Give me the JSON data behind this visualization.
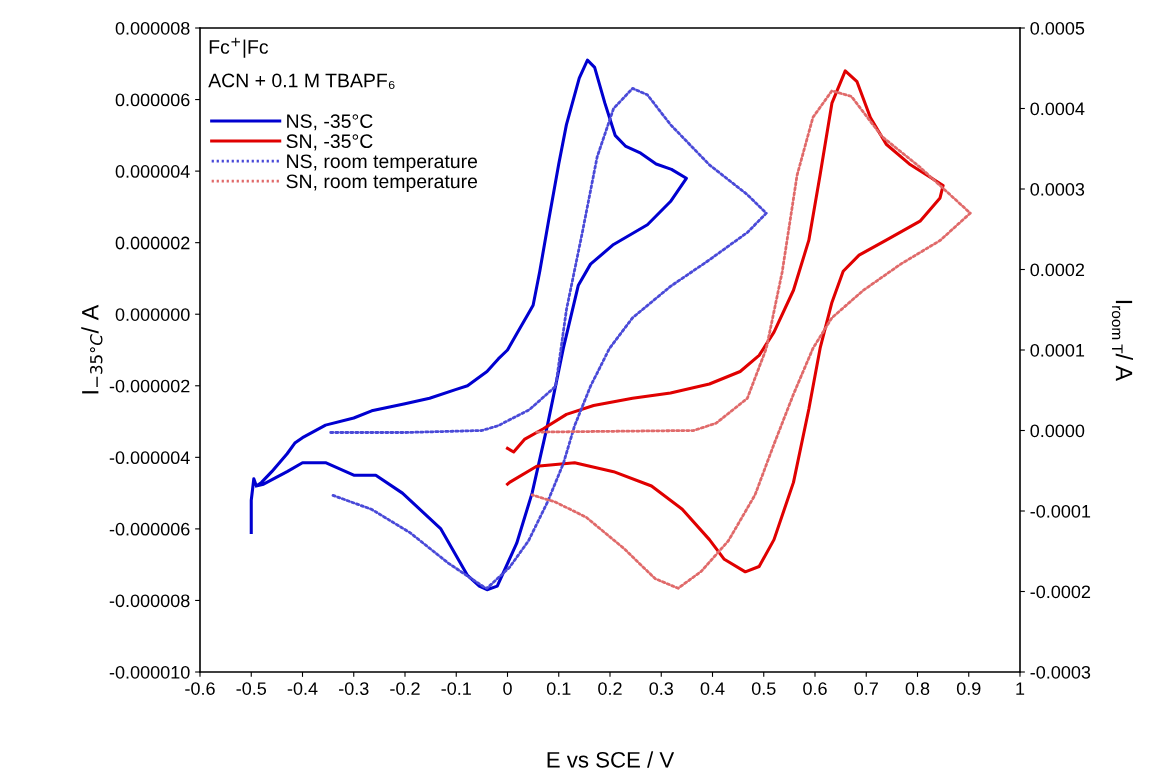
{
  "chart_data": {
    "type": "line",
    "xlabel": "E vs SCE / V",
    "ylabel": "I$_{−35°C}$/ A",
    "y2label": "I$_{room T}$/ A",
    "annotations": [
      "Fc$^{+}$|Fc",
      "ACN + 0.1 M TBAPF₆"
    ],
    "xlim": [
      -0.6,
      1
    ],
    "xticks": [
      -0.6,
      -0.5,
      -0.4,
      -0.3,
      -0.2,
      -0.1,
      0,
      0.1,
      0.2,
      0.3,
      0.4,
      0.5,
      0.6,
      0.7,
      0.8,
      0.9,
      1
    ],
    "ylim": [
      -1e-05,
      8e-06
    ],
    "yticks": [
      {
        "value": 8e-06,
        "label": "0.000008"
      },
      {
        "value": 6e-06,
        "label": "0.000006"
      },
      {
        "value": 4e-06,
        "label": "0.000004"
      },
      {
        "value": 2e-06,
        "label": "0.000002"
      },
      {
        "value": 0,
        "label": "0.000000"
      },
      {
        "value": -2e-06,
        "label": "-0.000002"
      },
      {
        "value": -4e-06,
        "label": "-0.000004"
      },
      {
        "value": -6e-06,
        "label": "-0.000006"
      },
      {
        "value": -8e-06,
        "label": "-0.000008"
      },
      {
        "value": -1e-05,
        "label": "-0.000010"
      }
    ],
    "y2lim": [
      -0.0003,
      0.0005
    ],
    "y2ticks": [
      0.0005,
      0.0004,
      0.0003,
      0.0002,
      0.0001,
      {
        "value": 0,
        "label": "0.0000"
      },
      -0.0001,
      -0.0002,
      -0.0003
    ],
    "grid": false,
    "legend": "top left",
    "series": [
      {
        "name": "NS, -35°C",
        "color": "#0000d0",
        "line_style": "solid",
        "x": [
          -0.5,
          -0.5,
          -0.495,
          -0.49,
          -0.48,
          -0.46,
          -0.43,
          -0.415,
          -0.4,
          -0.355,
          -0.3,
          -0.265,
          -0.2,
          -0.152,
          -0.1,
          -0.078,
          -0.04,
          -0.018,
          0,
          0.02,
          0.04,
          0.05,
          0.063,
          0.08,
          0.1,
          0.115,
          0.14,
          0.156,
          0.17,
          0.19,
          0.21,
          0.23,
          0.26,
          0.29,
          0.32,
          0.349,
          0.318,
          0.273,
          0.207,
          0.162,
          0.138,
          0.109,
          0.078,
          0.048,
          0.018,
          -0.02,
          -0.04,
          -0.055,
          -0.078,
          -0.13,
          -0.205,
          -0.257,
          -0.3,
          -0.355,
          -0.4,
          -0.43,
          -0.476,
          -0.49
        ],
        "values": [
          -6.1e-06,
          -5.2e-06,
          -4.6e-06,
          -4.8e-06,
          -4.7e-06,
          -4.4e-06,
          -3.9e-06,
          -3.6e-06,
          -3.45e-06,
          -3.1e-06,
          -2.9e-06,
          -2.7e-06,
          -2.5e-06,
          -2.35e-06,
          -2.1e-06,
          -2e-06,
          -1.6e-06,
          -1.25e-06,
          -1e-06,
          -5e-07,
          0.0,
          2.5e-07,
          1.2e-06,
          2.6e-06,
          4.2e-06,
          5.3e-06,
          6.6e-06,
          7.1e-06,
          6.9e-06,
          5.9e-06,
          5e-06,
          4.7e-06,
          4.5e-06,
          4.2e-06,
          4.05e-06,
          3.8e-06,
          3.15e-06,
          2.5e-06,
          1.95e-06,
          1.4e-06,
          8e-07,
          -9.5e-07,
          -3.1e-06,
          -5e-06,
          -6.4e-06,
          -7.6e-06,
          -7.7e-06,
          -7.6e-06,
          -7.3e-06,
          -6e-06,
          -5e-06,
          -4.5e-06,
          -4.5e-06,
          -4.15e-06,
          -4.15e-06,
          -4.4e-06,
          -4.75e-06,
          -4.8e-06
        ]
      },
      {
        "name": "SN, -35°C",
        "color": "#e00000",
        "line_style": "solid",
        "x": [
          0,
          0.012,
          0.033,
          0.07,
          0.115,
          0.168,
          0.244,
          0.318,
          0.394,
          0.454,
          0.491,
          0.52,
          0.558,
          0.588,
          0.61,
          0.633,
          0.659,
          0.682,
          0.708,
          0.739,
          0.784,
          0.828,
          0.85,
          0.844,
          0.805,
          0.739,
          0.686,
          0.655,
          0.633,
          0.61,
          0.588,
          0.558,
          0.52,
          0.491,
          0.464,
          0.423,
          0.394,
          0.341,
          0.281,
          0.207,
          0.131,
          0.057,
          0.004,
          0
        ],
        "values": [
          -3.75e-06,
          -3.85e-06,
          -3.5e-06,
          -3.2e-06,
          -2.8e-06,
          -2.55e-06,
          -2.35e-06,
          -2.2e-06,
          -1.95e-06,
          -1.6e-06,
          -1.15e-06,
          -5e-07,
          6.7e-07,
          2.07e-06,
          3.9e-06,
          5.9e-06,
          6.8e-06,
          6.5e-06,
          5.5e-06,
          4.75e-06,
          4.2e-06,
          3.8e-06,
          3.6e-06,
          3.25e-06,
          2.6e-06,
          2.07e-06,
          1.65e-06,
          1.2e-06,
          3.3e-07,
          -9.5e-07,
          -2.65e-06,
          -4.7e-06,
          -6.3e-06,
          -7.05e-06,
          -7.2e-06,
          -6.85e-06,
          -6.3e-06,
          -5.45e-06,
          -4.8e-06,
          -4.4e-06,
          -4.15e-06,
          -4.25e-06,
          -4.7e-06,
          -4.75e-06
        ]
      },
      {
        "name": "NS, room temperature",
        "color": "#4a4ad8",
        "line_style": "dotted",
        "axis": "y2",
        "x": [
          -0.345,
          -0.2,
          -0.05,
          -0.018,
          0.043,
          0.094,
          0.115,
          0.146,
          0.175,
          0.207,
          0.244,
          0.273,
          0.318,
          0.394,
          0.468,
          0.505,
          0.468,
          0.394,
          0.318,
          0.244,
          0.199,
          0.162,
          0.131,
          0.109,
          0.078,
          0.041,
          0.004,
          -0.04,
          -0.047,
          -0.115,
          -0.19,
          -0.265,
          -0.343
        ],
        "values": [
          -2.5e-06,
          -2.5e-06,
          0.0,
          6e-06,
          2.6e-05,
          5.5e-05,
          0.00015,
          0.000246,
          0.00034,
          0.0004,
          0.000425,
          0.000417,
          0.00038,
          0.00033,
          0.000293,
          0.00027,
          0.000246,
          0.000212,
          0.000179,
          0.00014,
          0.000102,
          5.5e-05,
          6e-06,
          -4.1e-05,
          -8.9e-05,
          -0.000137,
          -0.00017,
          -0.000196,
          -0.000194,
          -0.000165,
          -0.000127,
          -9.8e-05,
          -8e-05
        ]
      },
      {
        "name": "SN, room temperature",
        "color": "#e06a6a",
        "line_style": "dotted",
        "axis": "y2",
        "x": [
          0.057,
          0.2,
          0.363,
          0.407,
          0.468,
          0.505,
          0.536,
          0.565,
          0.596,
          0.633,
          0.671,
          0.731,
          0.805,
          0.903,
          0.844,
          0.768,
          0.694,
          0.633,
          0.596,
          0.558,
          0.52,
          0.483,
          0.431,
          0.378,
          0.333,
          0.288,
          0.228,
          0.154,
          0.094,
          0.048
        ],
        "values": [
          -2e-06,
          -1e-06,
          0.0,
          9e-06,
          4e-05,
          0.000102,
          0.000197,
          0.000317,
          0.000389,
          0.000422,
          0.000415,
          0.000365,
          0.000327,
          0.00027,
          0.000236,
          0.000207,
          0.000174,
          0.00014,
          0.000102,
          4.5e-05,
          -1.7e-05,
          -8e-05,
          -0.000137,
          -0.000175,
          -0.000196,
          -0.000184,
          -0.000147,
          -0.000108,
          -8.9e-05,
          -8e-05
        ]
      }
    ]
  }
}
